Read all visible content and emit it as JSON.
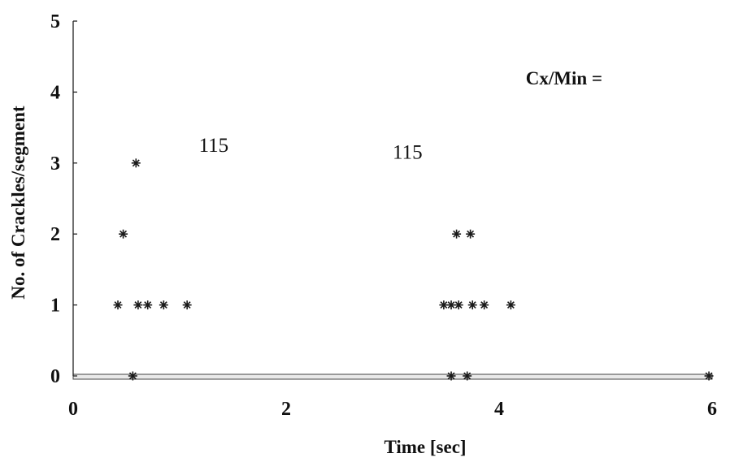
{
  "chart_data": {
    "type": "scatter",
    "title": "",
    "xlabel": "Time [sec]",
    "ylabel": "No. of Crackles/segment",
    "xlim": [
      0,
      6
    ],
    "ylim": [
      0,
      5
    ],
    "x_ticks": [
      "0",
      "2",
      "4",
      "6"
    ],
    "y_ticks": [
      "0",
      "1",
      "2",
      "3",
      "4",
      "5"
    ],
    "grid": false,
    "marker": "asterisk",
    "annotations": [
      {
        "text": "Cx/Min =",
        "x": 4.25,
        "y": 4.2,
        "bold": true
      },
      {
        "text": "115",
        "x": 1.18,
        "y": 3.25,
        "bold": false
      },
      {
        "text": "115",
        "x": 3.0,
        "y": 3.15,
        "bold": false
      }
    ],
    "points": [
      {
        "x": 0.42,
        "y": 1
      },
      {
        "x": 0.47,
        "y": 2
      },
      {
        "x": 0.59,
        "y": 3
      },
      {
        "x": 0.61,
        "y": 1
      },
      {
        "x": 0.7,
        "y": 1
      },
      {
        "x": 0.85,
        "y": 1
      },
      {
        "x": 1.07,
        "y": 1
      },
      {
        "x": 3.48,
        "y": 1
      },
      {
        "x": 3.55,
        "y": 1
      },
      {
        "x": 3.6,
        "y": 2
      },
      {
        "x": 3.62,
        "y": 1
      },
      {
        "x": 3.73,
        "y": 2
      },
      {
        "x": 3.75,
        "y": 1
      },
      {
        "x": 3.86,
        "y": 1
      },
      {
        "x": 4.11,
        "y": 1
      },
      {
        "x": 0.56,
        "y": 0
      },
      {
        "x": 3.55,
        "y": 0
      },
      {
        "x": 3.7,
        "y": 0
      },
      {
        "x": 5.97,
        "y": 0
      }
    ]
  }
}
